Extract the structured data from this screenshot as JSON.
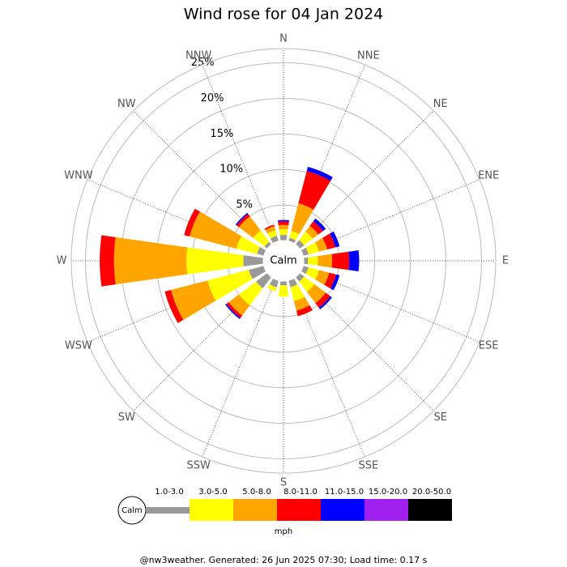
{
  "chart_data": {
    "type": "windrose",
    "title": "Wind rose for 04 Jan 2024",
    "directions": [
      "N",
      "NNE",
      "NE",
      "ENE",
      "E",
      "ESE",
      "SE",
      "SSE",
      "S",
      "SSW",
      "SW",
      "WSW",
      "W",
      "WNW",
      "NW",
      "NNW"
    ],
    "center_label": "Calm",
    "unit": "mph",
    "ylim": [
      0,
      27
    ],
    "yticks": [
      {
        "value": 5,
        "label": "5%"
      },
      {
        "value": 10,
        "label": "10%"
      },
      {
        "value": 15,
        "label": "15%"
      },
      {
        "value": 20,
        "label": "20%"
      },
      {
        "value": 25,
        "label": "25%"
      }
    ],
    "series": [
      {
        "name": "1.0-3.0",
        "color": "#999999",
        "values": [
          0.8,
          0.5,
          0.8,
          0.8,
          0.6,
          0.8,
          0.8,
          1.0,
          0.6,
          1.0,
          2.0,
          2.2,
          2.8,
          1.0,
          0.5,
          0.8
        ]
      },
      {
        "name": "3.0-5.0",
        "color": "#ffff00",
        "values": [
          0.8,
          1.0,
          1.5,
          1.5,
          1.4,
          1.5,
          1.8,
          2.0,
          1.6,
          0.6,
          3.0,
          6.0,
          8.0,
          3.0,
          2.0,
          0.8
        ]
      },
      {
        "name": "5.0-8.0",
        "color": "#ffa500",
        "values": [
          0.6,
          4.0,
          1.0,
          1.2,
          2.0,
          1.5,
          2.0,
          1.4,
          0,
          0,
          1.8,
          5.3,
          10.2,
          6.8,
          2.5,
          0.6
        ]
      },
      {
        "name": "8.0-11.0",
        "color": "#ff0000",
        "values": [
          0.5,
          4.7,
          0.8,
          1.2,
          2.4,
          1.0,
          0.8,
          0.8,
          0,
          0,
          0.4,
          0.9,
          2.0,
          0.8,
          0.4,
          0.2
        ]
      },
      {
        "name": "11.0-15.0",
        "color": "#0000ff",
        "values": [
          0.2,
          0.6,
          0.5,
          0.6,
          1.4,
          0.5,
          0.3,
          0,
          0,
          0,
          0.2,
          0,
          0,
          0,
          0.2,
          0
        ]
      },
      {
        "name": "15.0-20.0",
        "color": "#a020f0",
        "values": [
          0,
          0,
          0,
          0,
          0,
          0,
          0,
          0,
          0,
          0,
          0,
          0,
          0,
          0,
          0,
          0
        ]
      },
      {
        "name": "20.0-50.0",
        "color": "#000000",
        "values": [
          0,
          0,
          0,
          0,
          0,
          0,
          0,
          0,
          0,
          0,
          0,
          0,
          0,
          0,
          0,
          0
        ]
      }
    ],
    "footer": "@nw3weather. Generated: 26 Jun 2025 07:30; Load time: 0.17 s"
  }
}
